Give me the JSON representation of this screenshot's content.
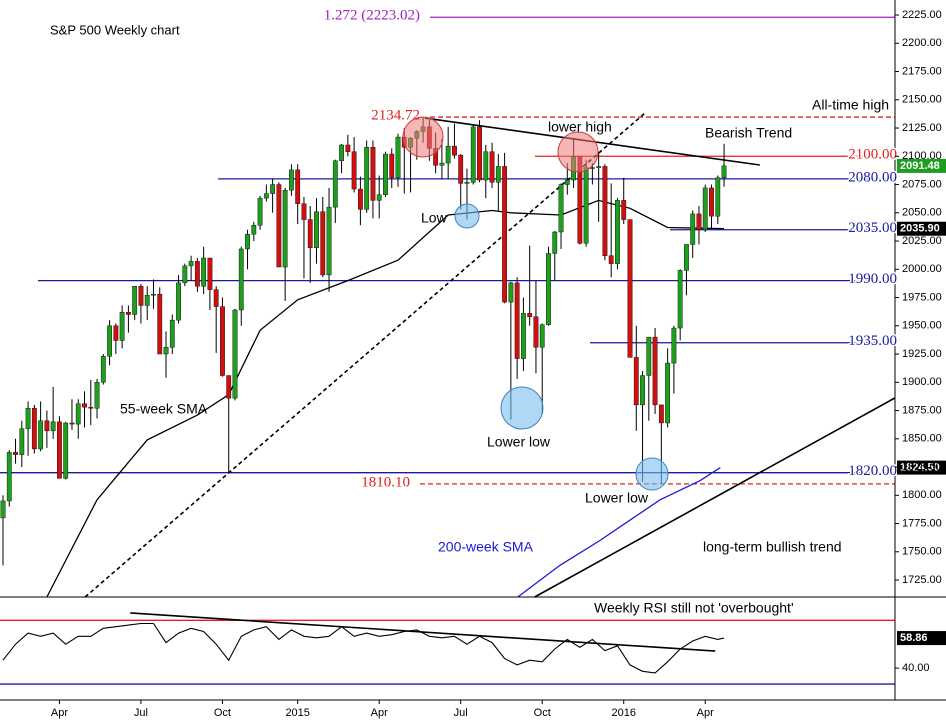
{
  "chart_data": [
    {
      "type": "candlestick",
      "title": "S&P 500 Weekly chart",
      "categories": [
        null,
        null,
        null,
        null,
        null,
        null,
        null,
        null,
        null,
        "Apr",
        null,
        null,
        null,
        null,
        null,
        null,
        null,
        null,
        null,
        null,
        null,
        null,
        "Jul",
        null,
        null,
        null,
        null,
        null,
        null,
        null,
        null,
        null,
        null,
        null,
        null,
        "Oct",
        null,
        null,
        null,
        null,
        null,
        null,
        null,
        null,
        null,
        null,
        null,
        "2015",
        null,
        null,
        null,
        null,
        null,
        null,
        null,
        null,
        null,
        null,
        null,
        null,
        "Apr",
        null,
        null,
        null,
        null,
        null,
        null,
        null,
        null,
        null,
        null,
        null,
        null,
        "Jul",
        null,
        null,
        null,
        null,
        null,
        null,
        null,
        null,
        null,
        null,
        null,
        null,
        "Oct",
        null,
        null,
        null,
        null,
        null,
        null,
        null,
        null,
        null,
        null,
        null,
        null,
        "2016",
        null,
        null,
        null,
        null,
        null,
        null,
        null,
        null,
        null,
        null,
        null,
        null,
        "Apr",
        null,
        null,
        null
      ],
      "open": [
        1780,
        1795,
        1838,
        1836,
        1859,
        1877,
        1841,
        1866,
        1857,
        1865,
        1815,
        1864,
        1863,
        1881,
        1878,
        1877,
        1900,
        1923,
        1950,
        1937,
        1962,
        1960,
        1985,
        1968,
        1977,
        1978,
        1925,
        1931,
        1955,
        1988,
        2003,
        2007,
        1985,
        2010,
        1982,
        1967,
        1906,
        1886,
        1964,
        2018,
        2031,
        2039,
        2063,
        2067,
        2075,
        2002,
        2070,
        2088,
        2058,
        2044,
        2019,
        2051,
        1995,
        2055,
        2096,
        2110,
        2104,
        2071,
        2053,
        2108,
        2061,
        2066,
        2102,
        2081,
        2117,
        2108,
        2116,
        2122,
        2126,
        2107,
        2092,
        2094,
        2109,
        2101,
        2076,
        2077,
        2126,
        2079,
        2104,
        2077,
        2091,
        1971,
        1988,
        1921,
        1961,
        1958,
        1931,
        1951,
        2014,
        2033,
        2075,
        2079,
        2100,
        2023,
        2090,
        2090,
        2091,
        2012,
        2005,
        2061,
        2044,
        1922,
        1880,
        1906,
        1940,
        1880,
        1864,
        1917,
        1948,
        1999,
        2022,
        2049,
        2035,
        2072,
        2047,
        2081
      ],
      "high": [
        1800,
        1840,
        1850,
        1866,
        1883,
        1880,
        1883,
        1875,
        1896,
        1870,
        1865,
        1885,
        1885,
        1892,
        1902,
        1903,
        1925,
        1955,
        1952,
        1968,
        1968,
        1985,
        1987,
        1985,
        1991,
        1984,
        1945,
        1960,
        1995,
        2005,
        2012,
        2010,
        2020,
        2010,
        1985,
        1975,
        1906,
        1965,
        2020,
        2035,
        2042,
        2065,
        2075,
        2080,
        2077,
        2072,
        2093,
        2093,
        2064,
        2056,
        2063,
        2064,
        2072,
        2097,
        2111,
        2119,
        2117,
        2082,
        2114,
        2114,
        2083,
        2104,
        2107,
        2120,
        2125,
        2117,
        2123,
        2134.72,
        2132,
        2121,
        2115,
        2126,
        2129,
        2102,
        2089,
        2128,
        2132,
        2110,
        2112,
        2102,
        2103,
        1989,
        1993,
        1975,
        2021,
        1990,
        1952,
        2020,
        2034,
        2076,
        2094,
        2116,
        2100,
        2097,
        2094,
        2104,
        2093,
        2076,
        2063,
        2081,
        2044,
        1950,
        1910,
        1940,
        1948,
        1880,
        1930,
        1950,
        2000,
        2022,
        2052,
        2056,
        2075,
        2075,
        2083,
        2111
      ],
      "low": [
        1738,
        1790,
        1828,
        1825,
        1835,
        1837,
        1839,
        1842,
        1850,
        1815,
        1814,
        1858,
        1850,
        1860,
        1862,
        1868,
        1898,
        1915,
        1925,
        1930,
        1944,
        1955,
        1952,
        1955,
        1965,
        1925,
        1904,
        1925,
        1952,
        1985,
        1990,
        1980,
        1978,
        1964,
        1926,
        1905,
        1820,
        1884,
        1950,
        2000,
        2025,
        2035,
        2060,
        2050,
        2002,
        1972,
        2065,
        2040,
        1992,
        1988,
        2005,
        1993,
        1980,
        2041,
        2085,
        2100,
        2068,
        2039,
        2050,
        2045,
        2045,
        2064,
        2072,
        2073,
        2067,
        2068,
        2097,
        2112,
        2096,
        2085,
        2080,
        2080,
        2098,
        2053,
        2044,
        2075,
        2077,
        2063,
        2072,
        2052,
        1970,
        1867,
        1903,
        1910,
        1950,
        1908,
        1872,
        1950,
        1990,
        2018,
        2066,
        2072,
        2022,
        2020,
        2075,
        2042,
        2008,
        1993,
        2000,
        2040,
        1923,
        1857,
        1812,
        1866,
        1872,
        1810.1,
        1860,
        1890,
        1937,
        1977,
        2010,
        2022,
        2033,
        2036,
        2040,
        2073
      ],
      "close": [
        1795,
        1838,
        1836,
        1859,
        1877,
        1841,
        1866,
        1857,
        1865,
        1815,
        1864,
        1863,
        1881,
        1878,
        1877,
        1900,
        1923,
        1950,
        1937,
        1962,
        1960,
        1985,
        1968,
        1977,
        1978,
        1925,
        1931,
        1955,
        1988,
        2003,
        2007,
        1985,
        2010,
        1982,
        1967,
        1906,
        1886,
        1964,
        2018,
        2031,
        2039,
        2063,
        2067,
        2075,
        2002,
        2070,
        2088,
        2058,
        2044,
        2019,
        2051,
        1995,
        2055,
        2096,
        2110,
        2104,
        2071,
        2053,
        2108,
        2061,
        2066,
        2102,
        2081,
        2117,
        2108,
        2116,
        2122,
        2126,
        2107,
        2092,
        2094,
        2109,
        2101,
        2076,
        2077,
        2126,
        2079,
        2104,
        2077,
        2091,
        1971,
        1988,
        1921,
        1961,
        1958,
        1931,
        1951,
        2014,
        2033,
        2075,
        2079,
        2100,
        2023,
        2090,
        2090,
        2091,
        2012,
        2005,
        2061,
        2044,
        1922,
        1880,
        1906,
        1940,
        1880,
        1864,
        1917,
        1948,
        1999,
        2022,
        2049,
        2035,
        2072,
        2047,
        2081,
        2091.48
      ],
      "up_color": "#1e9e1e",
      "down_color": "#d01010",
      "series": [
        {
          "name": "55-week SMA",
          "color": "#000000",
          "x": [
            7,
            15,
            23,
            31,
            36,
            41,
            47,
            55,
            63,
            71,
            78,
            81,
            89,
            95,
            100,
            106,
            115
          ],
          "values": [
            1710,
            1796,
            1849,
            1871,
            1889,
            1946,
            1973,
            1990,
            2008,
            2048,
            2052,
            2050,
            2048,
            2061,
            2054,
            2037,
            2035.9
          ]
        },
        {
          "name": "200-week SMA",
          "color": "#1a1ad0",
          "x": [
            82.1,
            88.8,
            95.2,
            104.8,
            111.2,
            114.4
          ],
          "values": [
            1710,
            1738,
            1760,
            1796,
            1813,
            1824.5
          ]
        }
      ],
      "trendlines": [
        {
          "x": [
            13.1,
            102.4
          ],
          "values": [
            1710,
            2138.3
          ],
          "color": "#000000",
          "dashed": true
        },
        {
          "x": [
            67.3,
            120.7
          ],
          "values": [
            2133.8,
            2092.3
          ],
          "color": "#000000",
          "dashed": false
        },
        {
          "x": [
            84.8,
            142.2
          ],
          "values": [
            1710,
            1886
          ],
          "color": "#000000",
          "dashed": false
        }
      ],
      "levels": [
        {
          "value": 2223.02,
          "label": "1.272 (2223.02)",
          "color": "#a020c0",
          "dashed": false
        },
        {
          "value": 2134.72,
          "label": "2134.72",
          "color": "#e02020",
          "dashed": true
        },
        {
          "value": 2100,
          "label": "2100.00",
          "color": "#e02020",
          "dashed": false
        },
        {
          "value": 2080,
          "label": "2080.00",
          "color": "#1a1aa0",
          "dashed": false
        },
        {
          "value": 2035,
          "label": "2035.00",
          "color": "#1a1aa0",
          "dashed": false
        },
        {
          "value": 1990,
          "label": "1990.00",
          "color": "#1a1aa0",
          "dashed": false
        },
        {
          "value": 1935,
          "label": "1935.00",
          "color": "#1a1aa0",
          "dashed": false
        },
        {
          "value": 1820,
          "label": "1820.00",
          "color": "#1a1aa0",
          "dashed": false
        },
        {
          "value": 1810.1,
          "label": "1810.10",
          "color": "#e02020",
          "dashed": true
        }
      ],
      "markers": [
        {
          "value": 2091.48,
          "label": "2091.48",
          "color": "#1e9e1e"
        },
        {
          "value": 2035.9,
          "label": "2035.90",
          "color": "#000000"
        },
        {
          "value": 1824.5,
          "label": "1824.50",
          "color": "#000000"
        }
      ],
      "annotations": [
        "All-time high",
        "Bearish Trend",
        "lower high",
        "Low",
        "Lower low",
        "Lower low",
        "55-week SMA",
        "200-week SMA",
        "long-term bullish trend"
      ],
      "ylim": [
        1710,
        2238.3
      ],
      "yticks": [
        {
          "value": 1725,
          "label": "1725.00"
        },
        {
          "value": 1750,
          "label": "1750.00"
        },
        {
          "value": 1775,
          "label": "1775.00"
        },
        {
          "value": 1800,
          "label": "1800.00"
        },
        {
          "value": 1825,
          "label": "1825.00"
        },
        {
          "value": 1850,
          "label": "1850.00"
        },
        {
          "value": 1875,
          "label": "1875.00"
        },
        {
          "value": 1900,
          "label": "1900.00"
        },
        {
          "value": 1925,
          "label": "1925.00"
        },
        {
          "value": 1950,
          "label": "1950.00"
        },
        {
          "value": 1975,
          "label": "1975.00"
        },
        {
          "value": 2000,
          "label": "2000.00"
        },
        {
          "value": 2025,
          "label": "2025.00"
        },
        {
          "value": 2050,
          "label": "2050.00"
        },
        {
          "value": 2075,
          "label": "2075.00"
        },
        {
          "value": 2100,
          "label": "2100.00"
        },
        {
          "value": 2125,
          "label": "2125.00"
        },
        {
          "value": 2150,
          "label": "2150.00"
        },
        {
          "value": 2175,
          "label": "2175.00"
        },
        {
          "value": 2200,
          "label": "2200.00"
        },
        {
          "value": 2225,
          "label": "2225.00"
        }
      ]
    },
    {
      "type": "line",
      "annotation": "Weekly RSI still not 'overbought'",
      "series": [
        {
          "name": "RSI",
          "color": "#000000",
          "x": [
            0,
            2,
            4,
            6,
            8,
            10,
            12,
            14,
            16,
            18,
            20,
            22,
            24,
            26,
            28,
            30,
            32,
            34,
            36,
            38,
            40,
            42,
            44,
            46,
            48,
            50,
            52,
            54,
            56,
            58,
            60,
            62,
            64,
            66,
            68,
            70,
            72,
            74,
            76,
            78,
            80,
            82,
            84,
            86,
            88,
            90,
            92,
            94,
            96,
            98,
            100,
            102,
            104,
            106,
            108,
            110,
            112,
            114,
            115
          ],
          "values": [
            45,
            55,
            62,
            60,
            62,
            55,
            60,
            60,
            65,
            66,
            67,
            68,
            68,
            56,
            62,
            65,
            63,
            55,
            45,
            60,
            64,
            66,
            58,
            64,
            60,
            59,
            60,
            66,
            60,
            62,
            60,
            61,
            63,
            64,
            60,
            59,
            60,
            55,
            60,
            56,
            46,
            42,
            45,
            44,
            52,
            58,
            53,
            58,
            51,
            54,
            42,
            38,
            37,
            44,
            52,
            57,
            60,
            58,
            58.86
          ]
        }
      ],
      "trendlines": [
        {
          "x": [
            20.3,
            113.6
          ],
          "values": [
            74.6,
            50.7
          ],
          "color": "#000000",
          "dashed": false
        }
      ],
      "levels": [
        {
          "value": 70,
          "color": "#e02020"
        },
        {
          "value": 30,
          "color": "#1a1aa0"
        }
      ],
      "markers": [
        {
          "value": 58.86,
          "label": "58.86",
          "color": "#000000"
        }
      ],
      "ylim": [
        20,
        84
      ],
      "yticks": [
        {
          "value": 40,
          "label": "40.00"
        }
      ]
    }
  ]
}
